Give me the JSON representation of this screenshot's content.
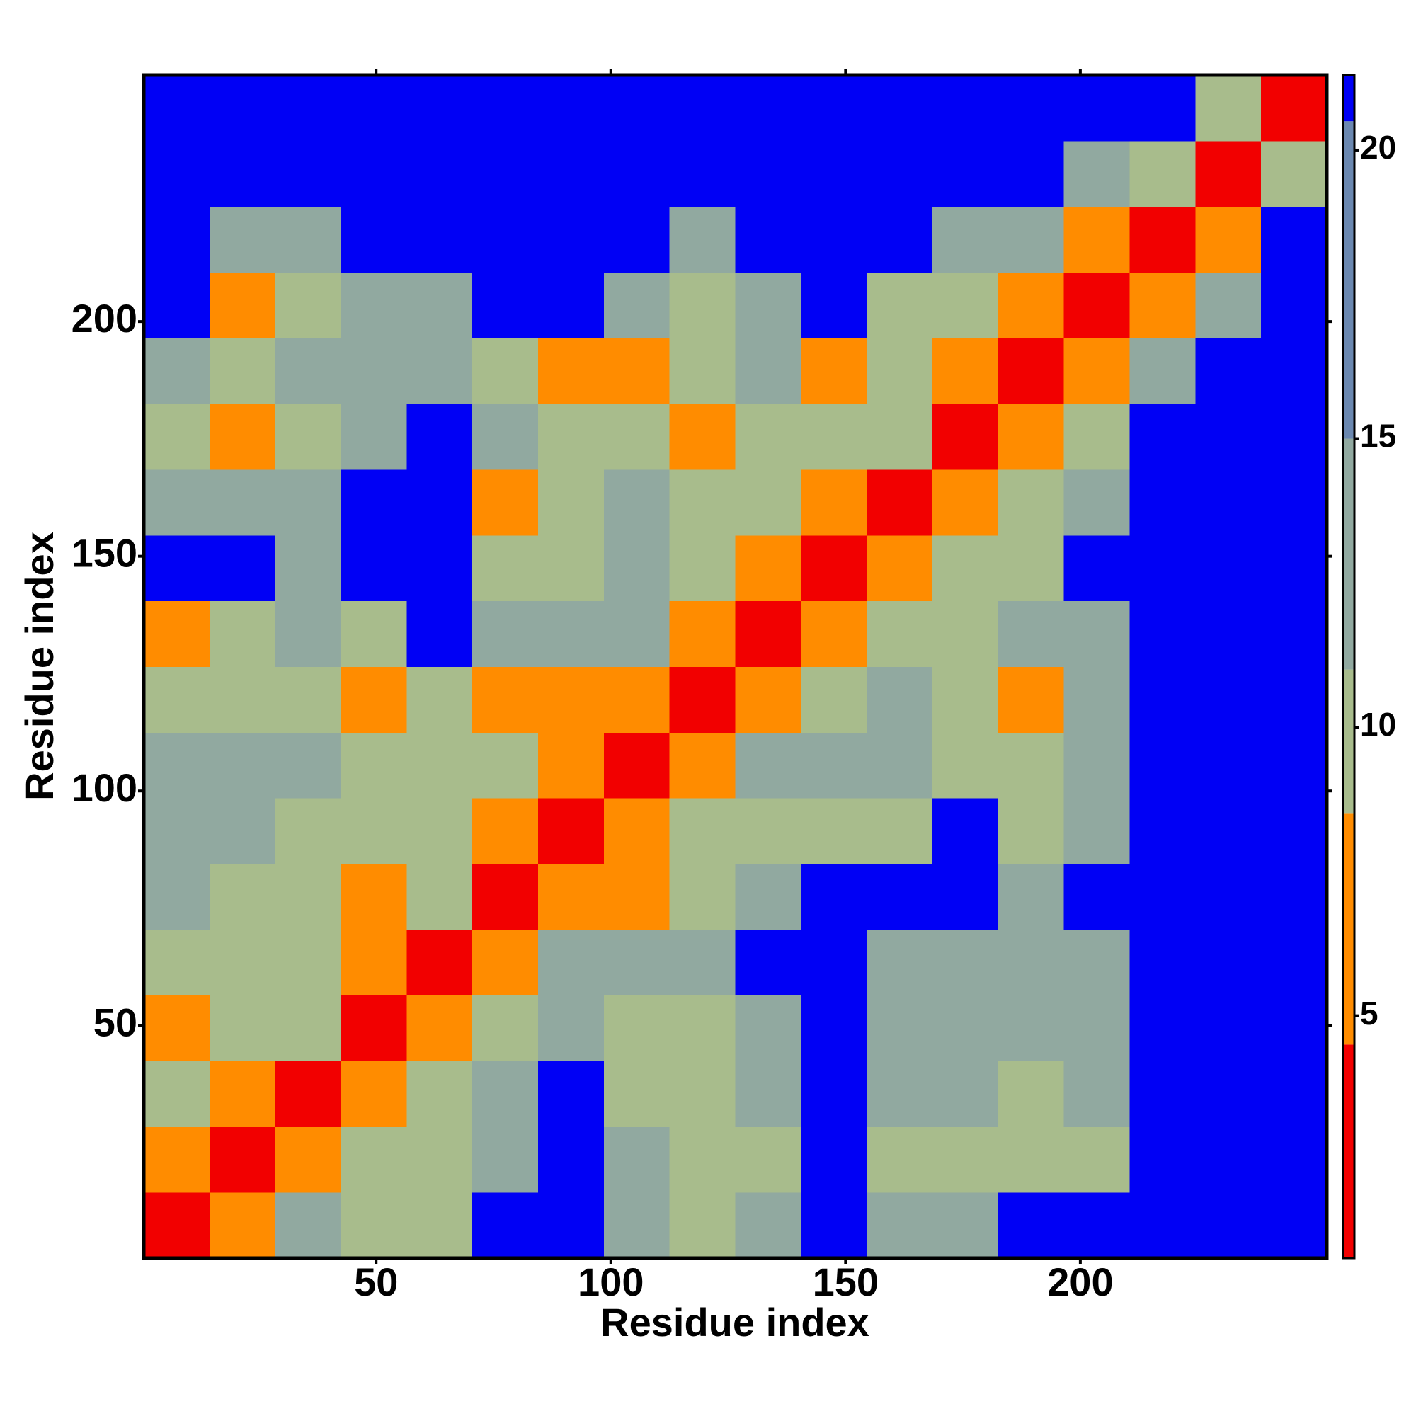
{
  "chart_data": {
    "type": "heatmap",
    "xlabel": "Residue index",
    "ylabel": "Residue index",
    "x_bins": [
      0.5,
      14.5,
      28.5,
      42.5,
      56.5,
      70.5,
      84.5,
      98.5,
      112.5,
      126.5,
      140.5,
      154.5,
      168.5,
      182.5,
      196.5,
      210.5,
      224.5,
      238.5,
      252.5
    ],
    "y_bins": [
      0.5,
      14.5,
      28.5,
      42.5,
      56.5,
      70.5,
      84.5,
      98.5,
      112.5,
      126.5,
      140.5,
      154.5,
      168.5,
      182.5,
      196.5,
      210.5,
      224.5,
      238.5,
      252.5
    ],
    "z": [
      [
        3.8,
        8,
        12,
        10,
        10,
        21,
        21,
        14,
        10,
        12,
        21,
        14,
        14,
        21,
        21,
        21,
        21,
        21
      ],
      [
        8,
        3.8,
        8,
        10,
        10,
        14,
        21,
        14,
        10,
        10,
        21,
        9,
        10,
        9,
        9,
        21,
        21,
        21
      ],
      [
        10,
        8,
        3.8,
        8,
        10,
        14,
        21,
        10,
        9,
        12,
        21,
        12,
        12,
        9,
        12,
        21,
        21,
        21
      ],
      [
        7,
        10,
        10,
        3.8,
        8,
        10,
        12,
        10,
        10,
        12,
        21,
        14,
        14,
        12,
        14,
        21,
        21,
        21
      ],
      [
        10,
        10,
        9,
        7,
        3.8,
        8,
        12,
        14,
        14,
        21,
        21,
        14,
        14,
        14,
        12,
        21,
        21,
        21
      ],
      [
        12,
        10,
        10,
        8,
        9,
        3.8,
        8,
        7,
        10,
        14,
        21,
        21,
        21,
        14,
        21,
        21,
        21,
        21
      ],
      [
        12,
        14,
        10,
        9,
        10,
        8,
        3.8,
        8,
        9,
        10,
        9,
        10,
        21,
        9,
        14,
        21,
        21,
        21
      ],
      [
        14,
        14,
        12,
        10,
        10,
        9,
        8,
        3.8,
        8,
        12,
        14,
        14,
        10,
        10,
        14,
        21,
        21,
        21
      ],
      [
        10,
        10,
        9,
        8,
        9,
        7,
        8,
        8,
        3.8,
        8,
        10,
        12,
        9,
        7,
        12,
        21,
        21,
        21
      ],
      [
        8,
        9,
        12,
        10,
        21,
        12,
        12,
        12,
        8,
        3.8,
        8,
        9,
        10,
        12,
        14,
        21,
        21,
        21
      ],
      [
        21,
        21,
        14,
        21,
        21,
        10,
        9,
        12,
        9,
        8,
        3.8,
        8,
        10,
        10,
        21,
        21,
        21,
        21
      ],
      [
        14,
        12,
        14,
        21,
        21,
        8,
        9,
        12,
        9,
        9,
        8,
        3.8,
        8,
        9,
        14,
        21,
        21,
        21
      ],
      [
        10,
        8,
        10,
        14,
        21,
        12,
        9,
        10,
        8,
        10,
        10,
        9,
        3.8,
        8,
        9,
        21,
        21,
        21
      ],
      [
        14,
        10,
        12,
        14,
        14,
        10,
        7,
        8,
        9,
        12,
        8,
        9,
        8,
        3.8,
        8,
        12,
        21,
        21
      ],
      [
        21,
        7,
        10,
        14,
        14,
        21,
        21,
        12,
        10,
        12,
        21,
        9,
        9,
        8,
        3.8,
        8,
        12,
        21
      ],
      [
        21,
        12,
        14,
        21,
        21,
        21,
        21,
        21,
        14,
        21,
        21,
        21,
        14,
        12,
        8,
        3.8,
        8,
        21
      ],
      [
        21,
        21,
        21,
        21,
        21,
        21,
        21,
        21,
        21,
        21,
        21,
        21,
        21,
        21,
        14,
        9,
        3.8,
        9
      ],
      [
        21,
        21,
        21,
        21,
        21,
        21,
        21,
        21,
        21,
        21,
        21,
        21,
        21,
        21,
        21,
        21,
        10,
        3.8
      ]
    ],
    "thresholds": [
      4.5,
      8.5,
      11,
      15,
      20.5
    ],
    "colors": [
      "#f20000",
      "#ff8c00",
      "#a8bc8c",
      "#91a9a0",
      "#6b88b0",
      "#0000f5"
    ],
    "xlim": [
      0.5,
      252.5
    ],
    "ylim": [
      0.5,
      252.5
    ],
    "xticks": [
      50,
      100,
      150,
      200
    ],
    "yticks": [
      50,
      100,
      150,
      200
    ],
    "zlim": [
      0.8,
      21.3
    ],
    "zticks": [
      5,
      10,
      15,
      20
    ]
  }
}
